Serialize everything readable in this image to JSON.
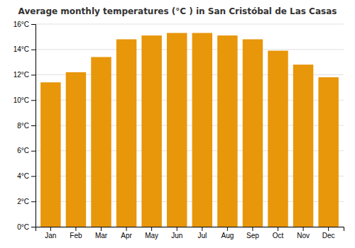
{
  "chart_data": {
    "type": "bar",
    "title": "Average monthly temperatures (°C ) in San Cristóbal de Las Casas",
    "categories": [
      "Jan",
      "Feb",
      "Mar",
      "Apr",
      "May",
      "Jun",
      "Jul",
      "Aug",
      "Sep",
      "Oct",
      "Nov",
      "Dec"
    ],
    "values": [
      11.4,
      12.2,
      13.4,
      14.8,
      15.1,
      15.3,
      15.3,
      15.1,
      14.8,
      13.9,
      12.8,
      11.8
    ],
    "color": "#E8960A",
    "ylim": [
      0,
      16
    ],
    "yticks": [
      {
        "value": 0,
        "label": "0°C"
      },
      {
        "value": 2,
        "label": "2°C"
      },
      {
        "value": 4,
        "label": "4°C"
      },
      {
        "value": 6,
        "label": "6°C"
      },
      {
        "value": 8,
        "label": "8°C"
      },
      {
        "value": 10,
        "label": "10°C"
      },
      {
        "value": 12,
        "label": "12°C"
      },
      {
        "value": 14,
        "label": "14°C"
      },
      {
        "value": 16,
        "label": "16°C"
      }
    ],
    "grid": true
  }
}
